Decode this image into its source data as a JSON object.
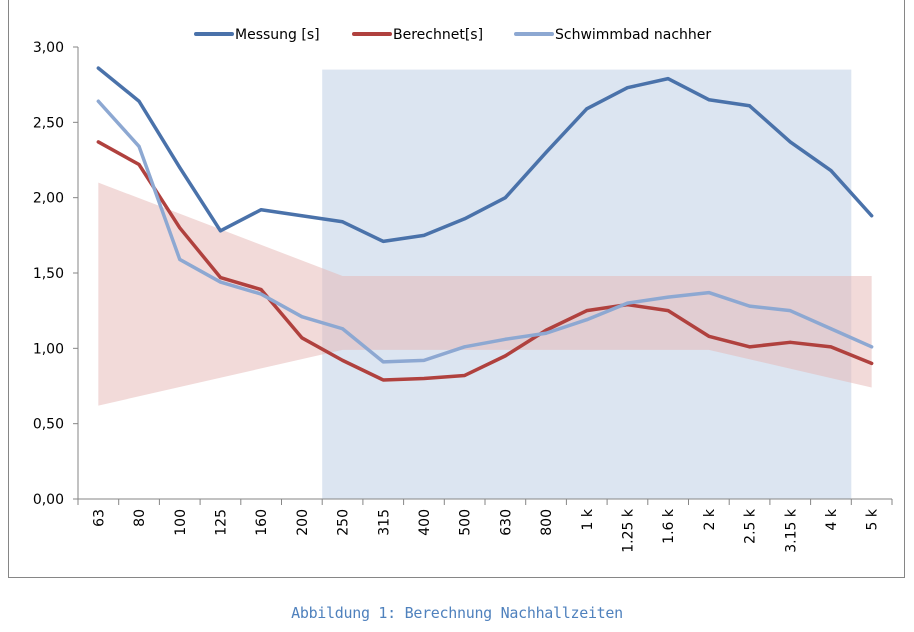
{
  "caption": "Abbildung 1: Berechnung Nachhallzeiten",
  "chart_data": {
    "type": "line",
    "title": "",
    "xlabel": "",
    "ylabel": "",
    "ylim": [
      0,
      3
    ],
    "yticks": [
      "0,00",
      "0,50",
      "1,00",
      "1,50",
      "2,00",
      "2,50",
      "3,00"
    ],
    "ytick_values": [
      0,
      0.5,
      1,
      1.5,
      2,
      2.5,
      3
    ],
    "grid": false,
    "legend": "top",
    "categories": [
      "63",
      "80",
      "100",
      "125",
      "160",
      "200",
      "250",
      "315",
      "400",
      "500",
      "630",
      "800",
      "1 k",
      "1.25 k",
      "1.6 k",
      "2 k",
      "2.5 k",
      "3.15 k",
      "4 k",
      "5 k"
    ],
    "series": [
      {
        "name": "Messung [s]",
        "color": "#4a72aa",
        "values": [
          2.86,
          2.64,
          2.2,
          1.78,
          1.92,
          1.88,
          1.84,
          1.71,
          1.75,
          1.86,
          2.0,
          2.3,
          2.59,
          2.73,
          2.79,
          2.65,
          2.61,
          2.37,
          2.18,
          1.88
        ]
      },
      {
        "name": "Berechnet[s]",
        "color": "#b0413e",
        "values": [
          2.37,
          2.22,
          1.8,
          1.47,
          1.39,
          1.07,
          0.92,
          0.79,
          0.8,
          0.82,
          0.95,
          1.12,
          1.25,
          1.29,
          1.25,
          1.08,
          1.01,
          1.04,
          1.01,
          0.9
        ]
      },
      {
        "name": "Schwimmbad nachher",
        "color": "#8da8d2",
        "values": [
          2.64,
          2.34,
          1.59,
          1.44,
          1.36,
          1.21,
          1.13,
          0.91,
          0.92,
          1.01,
          1.06,
          1.1,
          1.19,
          1.3,
          1.34,
          1.37,
          1.28,
          1.25,
          1.13,
          1.01
        ]
      }
    ],
    "tolerance_band": {
      "color": "#e6b6b4",
      "points": [
        {
          "x": "63",
          "lower": 0.62,
          "upper": 2.1
        },
        {
          "x": "250",
          "lower": 0.99,
          "upper": 1.48
        },
        {
          "x": "2 k",
          "lower": 0.99,
          "upper": 1.48
        },
        {
          "x": "5 k",
          "lower": 0.74,
          "upper": 1.48
        }
      ]
    },
    "highlight_range": {
      "color": "#dce5f1",
      "from": "250",
      "to": "4 k",
      "upper": 2.85
    }
  }
}
